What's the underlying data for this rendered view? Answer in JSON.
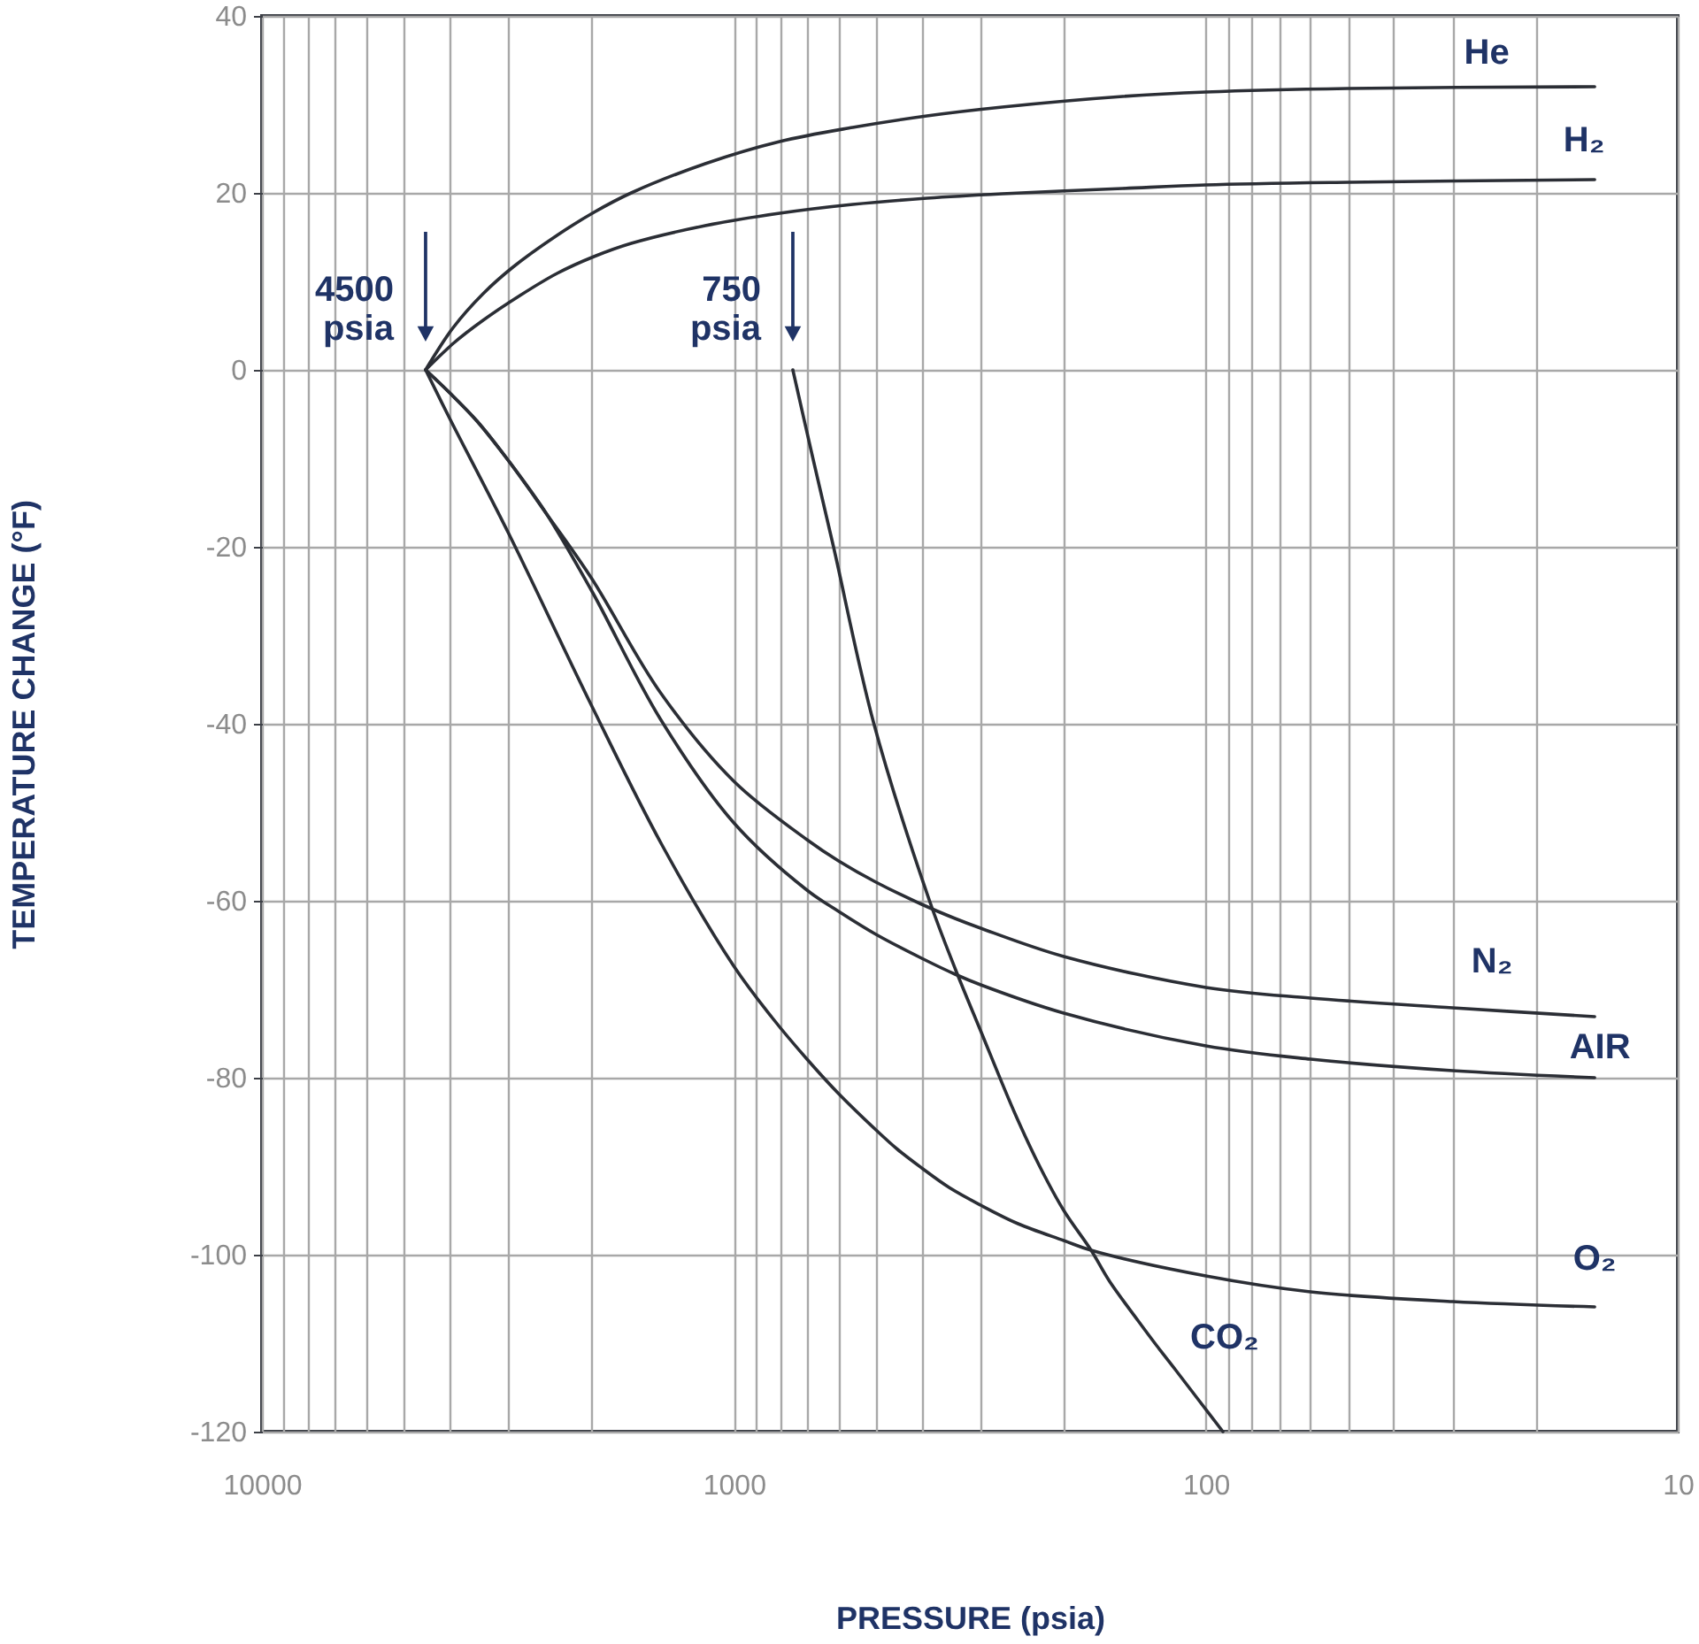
{
  "chart_data": {
    "type": "line",
    "xlabel": "PRESSURE (psia)",
    "ylabel": "TEMPERATURE CHANGE (°F)",
    "log": "x",
    "grid": true,
    "line_style": "solid",
    "xlim": [
      10000,
      10
    ],
    "xticks": [
      10000,
      {
        "value": 9000,
        "label": null
      },
      {
        "value": 8000,
        "label": null
      },
      {
        "value": 7000,
        "label": null
      },
      {
        "value": 6000,
        "label": null
      },
      {
        "value": 5000,
        "label": null
      },
      {
        "value": 4000,
        "label": null
      },
      {
        "value": 3000,
        "label": null
      },
      {
        "value": 2000,
        "label": null
      },
      1000,
      {
        "value": 900,
        "label": null
      },
      {
        "value": 800,
        "label": null
      },
      {
        "value": 700,
        "label": null
      },
      {
        "value": 600,
        "label": null
      },
      {
        "value": 500,
        "label": null
      },
      {
        "value": 400,
        "label": null
      },
      {
        "value": 300,
        "label": null
      },
      {
        "value": 200,
        "label": null
      },
      100,
      {
        "value": 90,
        "label": null
      },
      {
        "value": 80,
        "label": null
      },
      {
        "value": 70,
        "label": null
      },
      {
        "value": 60,
        "label": null
      },
      {
        "value": 50,
        "label": null
      },
      {
        "value": 40,
        "label": null
      },
      {
        "value": 30,
        "label": null
      },
      {
        "value": 20,
        "label": null
      },
      10
    ],
    "ylim": [
      -120,
      40
    ],
    "yticks": [
      -120,
      -100,
      -80,
      -60,
      -40,
      -20,
      0,
      20,
      40
    ],
    "series": [
      {
        "name": "He",
        "color": "#2b2e35",
        "x": [
          4500,
          3930,
          3400,
          2940,
          2370,
          1980,
          1650,
          1150,
          800,
          560,
          390,
          270,
          150,
          100,
          50,
          15
        ],
        "values": [
          0,
          4.8,
          8.6,
          11.6,
          15.2,
          17.8,
          20.0,
          23.3,
          25.8,
          27.4,
          28.7,
          29.7,
          30.9,
          31.4,
          31.8,
          32.0
        ]
      },
      {
        "name": "H₂",
        "color": "#2b2e35",
        "x": [
          4500,
          3930,
          3400,
          2840,
          2370,
          1980,
          1650,
          1150,
          800,
          560,
          390,
          270,
          150,
          100,
          50,
          15
        ],
        "values": [
          0,
          3.0,
          5.6,
          8.4,
          10.9,
          12.8,
          14.3,
          16.3,
          17.7,
          18.7,
          19.4,
          19.9,
          20.5,
          20.9,
          21.2,
          21.5
        ]
      },
      {
        "name": "N₂",
        "color": "#2b2e35",
        "x": [
          4500,
          4000,
          3500,
          3000,
          2500,
          2000,
          1430,
          1000,
          700,
          600,
          500,
          400,
          340,
          300,
          200,
          100,
          60,
          30,
          15
        ],
        "values": [
          0,
          -2.6,
          -5.8,
          -10.3,
          -16.2,
          -23.6,
          -36.5,
          -46.5,
          -53.1,
          -55.5,
          -57.9,
          -60.4,
          -62.0,
          -63.1,
          -66.3,
          -69.8,
          -71.0,
          -72.1,
          -73.1
        ]
      },
      {
        "name": "AIR",
        "color": "#2b2e35",
        "x": [
          4500,
          4000,
          3500,
          3000,
          2500,
          2000,
          1430,
          1000,
          700,
          600,
          500,
          400,
          340,
          300,
          200,
          100,
          60,
          30,
          15
        ],
        "values": [
          0,
          -2.6,
          -5.8,
          -10.3,
          -16.2,
          -25,
          -39.5,
          -51.2,
          -58.8,
          -61.2,
          -63.8,
          -66.5,
          -68.3,
          -69.5,
          -72.7,
          -76.4,
          -77.9,
          -79.2,
          -80.0
        ]
      },
      {
        "name": "O₂",
        "color": "#2b2e35",
        "x": [
          4500,
          4000,
          3000,
          2000,
          1420,
          1000,
          830,
          700,
          600,
          500,
          450,
          400,
          350,
          300,
          250,
          200,
          175,
          100,
          60,
          30,
          15
        ],
        "values": [
          0,
          -5.5,
          -18.5,
          -38,
          -53.7,
          -67.4,
          -73.2,
          -77.9,
          -81.8,
          -85.9,
          -88.1,
          -90.2,
          -92.4,
          -94.4,
          -96.5,
          -98.4,
          -99.5,
          -102.4,
          -104.2,
          -105.3,
          -105.9
        ]
      },
      {
        "name": "CO₂",
        "color": "#2b2e35",
        "x": [
          750,
          680,
          615,
          505,
          385,
          339,
          300,
          254,
          225,
          200,
          175,
          160,
          139,
          127,
          116,
          104,
          92
        ],
        "values": [
          0,
          -10,
          -20,
          -40,
          -60,
          -67.8,
          -74.7,
          -84,
          -90,
          -95,
          -99.5,
          -103,
          -107.5,
          -110.3,
          -113,
          -116.3,
          -120
        ]
      }
    ],
    "annotations": [
      {
        "text": "4500 psia",
        "x": 4500,
        "y": 0
      },
      {
        "text": "750 psia",
        "x": 750,
        "y": 0
      }
    ]
  }
}
